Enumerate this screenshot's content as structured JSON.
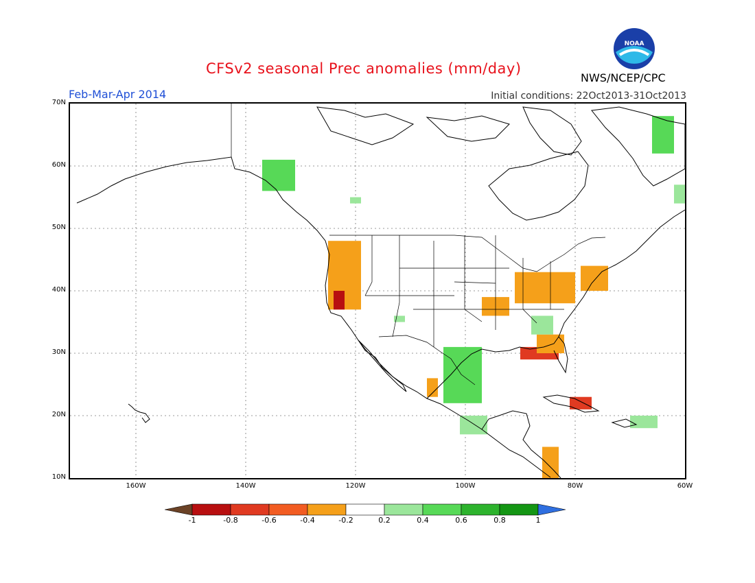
{
  "title": "CFSv2 seasonal Prec anomalies (mm/day)",
  "period": "Feb-Mar-Apr 2014",
  "initial_conditions": "Initial conditions: 22Oct2013-31Oct2013",
  "agency": "NWS/NCEP/CPC",
  "logo_text": "NOAA",
  "map": {
    "lon_range": [
      -172,
      -60
    ],
    "lat_range": [
      10,
      70
    ],
    "lat_ticks": [
      "10N",
      "20N",
      "30N",
      "40N",
      "50N",
      "60N",
      "70N"
    ],
    "lon_ticks": [
      "160W",
      "140W",
      "120W",
      "100W",
      "80W",
      "60W"
    ],
    "grid": "dotted"
  },
  "colorbar": {
    "labels": [
      "-1",
      "-0.8",
      "-0.6",
      "-0.4",
      "-0.2",
      "0.2",
      "0.4",
      "0.6",
      "0.8",
      "1"
    ],
    "colors": [
      "#6b4226",
      "#b80f10",
      "#e03a21",
      "#f25c22",
      "#f5a01a",
      "#ffffff",
      "#9be69b",
      "#57d957",
      "#2db32d",
      "#149614",
      "#2f6fe0"
    ]
  },
  "anomaly_regions": [
    {
      "name": "west-coast-dry",
      "level": "-0.4",
      "lon": [
        -125,
        -119
      ],
      "lat": [
        37,
        48
      ]
    },
    {
      "name": "northern-california-dry",
      "level": "-0.8",
      "lon": [
        -124,
        -122
      ],
      "lat": [
        37,
        40
      ]
    },
    {
      "name": "great-lakes-ohio-dry",
      "level": "-0.4",
      "lon": [
        -91,
        -80
      ],
      "lat": [
        38,
        43
      ]
    },
    {
      "name": "gulf-coast-dry",
      "level": "-0.6",
      "lon": [
        -90,
        -83
      ],
      "lat": [
        29,
        31
      ]
    },
    {
      "name": "southeast-dry",
      "level": "-0.4",
      "lon": [
        -87,
        -82
      ],
      "lat": [
        30,
        33
      ]
    },
    {
      "name": "northeast-dry",
      "level": "-0.4",
      "lon": [
        -79,
        -74
      ],
      "lat": [
        40,
        44
      ]
    },
    {
      "name": "mid-mississippi-dry",
      "level": "-0.4",
      "lon": [
        -97,
        -92
      ],
      "lat": [
        36,
        39
      ]
    },
    {
      "name": "central-america-dry",
      "level": "-0.4",
      "lon": [
        -86,
        -83
      ],
      "lat": [
        10,
        15
      ]
    },
    {
      "name": "cuba-dry",
      "level": "-0.6",
      "lon": [
        -81,
        -77
      ],
      "lat": [
        21,
        23
      ]
    },
    {
      "name": "mexico-pacific-dry",
      "level": "-0.4",
      "lon": [
        -107,
        -105
      ],
      "lat": [
        23,
        26
      ]
    },
    {
      "name": "texas-mexico-wet",
      "level": "0.4",
      "lon": [
        -104,
        -97
      ],
      "lat": [
        22,
        31
      ]
    },
    {
      "name": "southeast-mexico-wet",
      "level": "0.2",
      "lon": [
        -101,
        -96
      ],
      "lat": [
        17,
        20
      ]
    },
    {
      "name": "alaska-panhandle-wet",
      "level": "0.4",
      "lon": [
        -137,
        -131
      ],
      "lat": [
        56,
        61
      ]
    },
    {
      "name": "canada-west-wet",
      "level": "0.2",
      "lon": [
        -121,
        -119
      ],
      "lat": [
        54,
        55
      ]
    },
    {
      "name": "arizona-wet",
      "level": "0.2",
      "lon": [
        -113,
        -111
      ],
      "lat": [
        35,
        36
      ]
    },
    {
      "name": "carolinas-wet",
      "level": "0.2",
      "lon": [
        -88,
        -84
      ],
      "lat": [
        33,
        36
      ]
    },
    {
      "name": "labrador-wet",
      "level": "0.4",
      "lon": [
        -66,
        -62
      ],
      "lat": [
        62,
        68
      ]
    },
    {
      "name": "newfoundland-wet",
      "level": "0.2",
      "lon": [
        -62,
        -58
      ],
      "lat": [
        54,
        57
      ]
    },
    {
      "name": "puerto-rico-wet",
      "level": "0.2",
      "lon": [
        -70,
        -65
      ],
      "lat": [
        18,
        20
      ]
    }
  ]
}
